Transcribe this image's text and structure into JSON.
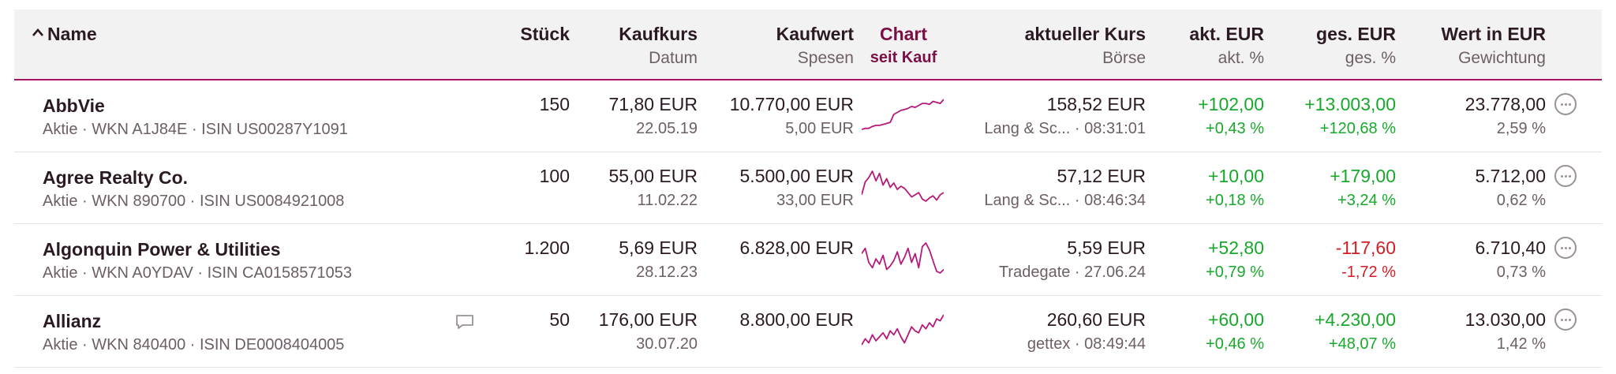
{
  "header": {
    "name": "Name",
    "stueck": "Stück",
    "kaufkurs": "Kaufkurs",
    "datum": "Datum",
    "kaufwert": "Kaufwert",
    "spesen": "Spesen",
    "chart": "Chart",
    "seit_kauf": "seit Kauf",
    "aktueller_kurs": "aktueller Kurs",
    "boerse": "Börse",
    "akt_eur": "akt. EUR",
    "akt_pct": "akt. %",
    "ges_eur": "ges. EUR",
    "ges_pct": "ges. %",
    "wert_eur": "Wert in EUR",
    "gewichtung": "Gewichtung"
  },
  "colors": {
    "accent": "#a31762",
    "positive": "#18a82b",
    "negative": "#d11e25",
    "spark": "#b51a7a"
  },
  "rows": [
    {
      "name": "AbbVie",
      "meta": "Aktie · WKN A1J84E · ISIN US00287Y1091",
      "stueck": "150",
      "kaufkurs": "71,80 EUR",
      "datum": "22.05.19",
      "kaufwert": "10.770,00 EUR",
      "spesen": "5,00 EUR",
      "kurs": "158,52 EUR",
      "boerse": "Lang & Sc... · 08:31:01",
      "akt_eur": "+102,00",
      "akt_pct": "+0,43 %",
      "ges_eur": "+13.003,00",
      "ges_pct": "+120,68 %",
      "wert": "23.778,00",
      "gewichtung": "2,59 %",
      "trend": "positive",
      "spark": [
        10,
        11,
        11,
        13,
        14,
        14,
        15,
        16,
        17,
        25,
        27,
        29,
        30,
        31,
        33,
        32,
        34,
        36,
        36,
        35,
        38,
        37,
        36,
        40
      ]
    },
    {
      "name": "Agree Realty Co.",
      "meta": "Aktie · WKN 890700 · ISIN US0084921008",
      "stueck": "100",
      "kaufkurs": "55,00 EUR",
      "datum": "11.02.22",
      "kaufwert": "5.500,00 EUR",
      "spesen": "33,00 EUR",
      "kurs": "57,12 EUR",
      "boerse": "Lang & Sc... · 08:46:34",
      "akt_eur": "+10,00",
      "akt_pct": "+0,18 %",
      "ges_eur": "+179,00",
      "ges_pct": "+3,24 %",
      "wert": "5.712,00",
      "gewichtung": "0,62 %",
      "trend": "positive",
      "spark": [
        18,
        30,
        34,
        40,
        31,
        38,
        27,
        33,
        25,
        29,
        23,
        26,
        24,
        20,
        16,
        18,
        20,
        14,
        12,
        15,
        17,
        13,
        18,
        20
      ]
    },
    {
      "name": "Algonquin Power & Utilities",
      "meta": "Aktie · WKN A0YDAV · ISIN CA0158571053",
      "stueck": "1.200",
      "kaufkurs": "5,69 EUR",
      "datum": "28.12.23",
      "kaufwert": "6.828,00 EUR",
      "spesen": "",
      "kurs": "5,59 EUR",
      "boerse": "Tradegate · 27.06.24",
      "akt_eur": "+52,80",
      "akt_pct": "+0,79 %",
      "ges_eur": "-117,60",
      "ges_pct": "-1,72 %",
      "wert": "6.710,40",
      "gewichtung": "0,73 %",
      "trend": "negative",
      "spark": [
        30,
        36,
        20,
        14,
        24,
        18,
        28,
        12,
        16,
        22,
        32,
        18,
        26,
        36,
        20,
        30,
        14,
        38,
        42,
        34,
        22,
        10,
        8,
        12
      ]
    },
    {
      "name": "Allianz",
      "meta": "Aktie · WKN 840400 · ISIN DE0008404005",
      "stueck": "50",
      "kaufkurs": "176,00 EUR",
      "datum": "30.07.20",
      "kaufwert": "8.800,00 EUR",
      "spesen": "",
      "kurs": "260,60 EUR",
      "boerse": "gettex · 08:49:44",
      "akt_eur": "+60,00",
      "akt_pct": "+0,46 %",
      "ges_eur": "+4.230,00",
      "ges_pct": "+48,07 %",
      "wert": "13.030,00",
      "gewichtung": "1,42 %",
      "trend": "positive",
      "spark": [
        12,
        18,
        14,
        22,
        16,
        20,
        24,
        18,
        26,
        22,
        28,
        20,
        14,
        22,
        30,
        26,
        24,
        32,
        28,
        34,
        30,
        38,
        36,
        42
      ],
      "has_comment": true
    }
  ]
}
